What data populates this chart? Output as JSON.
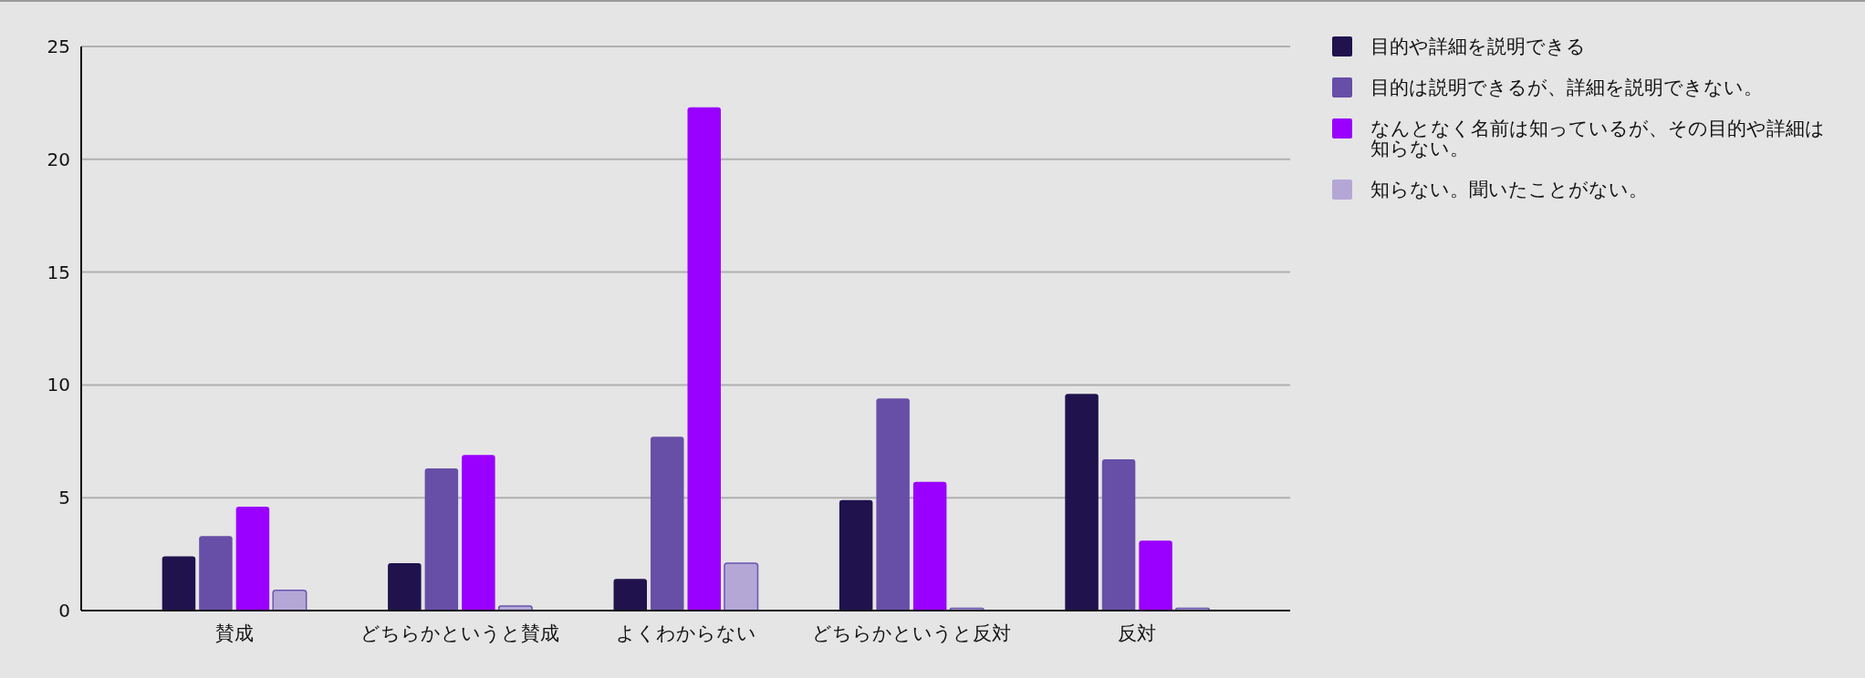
{
  "chart_data": {
    "type": "bar",
    "categories": [
      "賛成",
      "どちらかというと賛成",
      "よくわからない",
      "どちらかというと反対",
      "反対"
    ],
    "series": [
      {
        "name": "目的や詳細を説明できる",
        "color": "#20124d",
        "values": [
          2.4,
          2.1,
          1.4,
          4.9,
          9.6
        ]
      },
      {
        "name": "目的は説明できるが、詳細を説明できない。",
        "color": "#674ea7",
        "values": [
          3.3,
          6.3,
          7.7,
          9.4,
          6.7
        ]
      },
      {
        "name": "なんとなく名前は知っているが、その目的や詳細は知らない。",
        "color": "#9900ff",
        "values": [
          4.6,
          6.9,
          22.3,
          5.7,
          3.1
        ]
      },
      {
        "name": "知らない。聞いたことがない。",
        "color": "#b4a7d6",
        "values": [
          0.9,
          0.2,
          2.1,
          0.1,
          0.1
        ]
      }
    ],
    "ylim": [
      0,
      25
    ],
    "yticks": [
      0,
      5,
      10,
      15,
      20,
      25
    ],
    "grid": "y",
    "legend": "right"
  }
}
